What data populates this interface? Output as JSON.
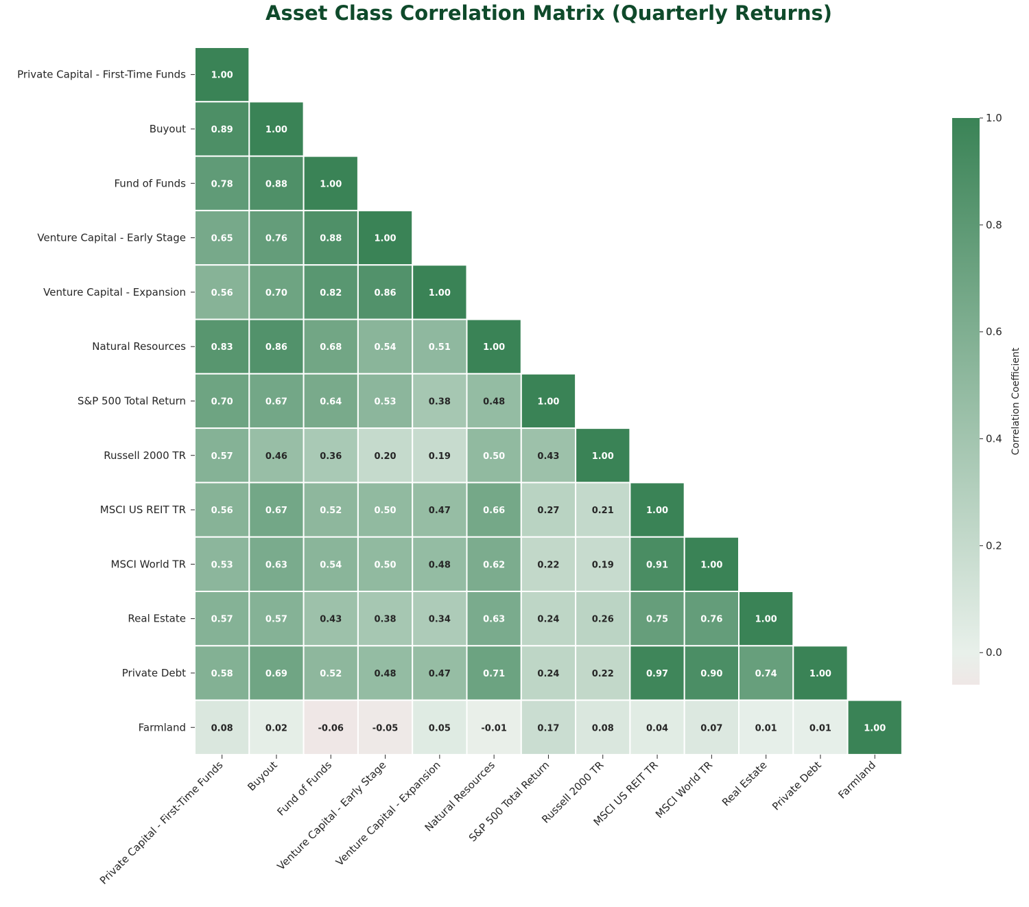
{
  "chart_data": {
    "type": "heatmap",
    "title": "Asset Class Correlation Matrix (Quarterly Returns)",
    "labels": [
      "Private Capital - First-Time Funds",
      "Buyout",
      "Fund of Funds",
      "Venture Capital - Early Stage",
      "Venture Capital - Expansion",
      "Natural Resources",
      "S&P 500 Total Return",
      "Russell 2000 TR",
      "MSCI US REIT TR",
      "MSCI World TR",
      "Real Estate",
      "Private Debt",
      "Farmland"
    ],
    "matrix_lower": [
      [
        1.0
      ],
      [
        0.89,
        1.0
      ],
      [
        0.78,
        0.88,
        1.0
      ],
      [
        0.65,
        0.76,
        0.88,
        1.0
      ],
      [
        0.56,
        0.7,
        0.82,
        0.86,
        1.0
      ],
      [
        0.83,
        0.86,
        0.68,
        0.54,
        0.51,
        1.0
      ],
      [
        0.7,
        0.67,
        0.64,
        0.53,
        0.38,
        0.48,
        1.0
      ],
      [
        0.57,
        0.46,
        0.36,
        0.2,
        0.19,
        0.5,
        0.43,
        1.0
      ],
      [
        0.56,
        0.67,
        0.52,
        0.5,
        0.47,
        0.66,
        0.27,
        0.21,
        1.0
      ],
      [
        0.53,
        0.63,
        0.54,
        0.5,
        0.48,
        0.62,
        0.22,
        0.19,
        0.91,
        1.0
      ],
      [
        0.57,
        0.57,
        0.43,
        0.38,
        0.34,
        0.63,
        0.24,
        0.26,
        0.75,
        0.76,
        1.0
      ],
      [
        0.58,
        0.69,
        0.52,
        0.48,
        0.47,
        0.71,
        0.24,
        0.22,
        0.97,
        0.9,
        0.74,
        1.0
      ],
      [
        0.08,
        0.02,
        -0.06,
        -0.05,
        0.05,
        -0.01,
        0.17,
        0.08,
        0.04,
        0.07,
        0.01,
        0.01,
        1.0
      ]
    ],
    "mask": "upper-triangle",
    "value_format": "2 decimals",
    "colorbar": {
      "label": "Correlation Coefficient",
      "range": [
        -0.06,
        1.0
      ],
      "ticks": [
        "0.0",
        "0.2",
        "0.4",
        "0.6",
        "0.8",
        "1.0"
      ],
      "tick_values": [
        0.0,
        0.2,
        0.4,
        0.6,
        0.8,
        1.0
      ]
    },
    "colors": {
      "low": "#efe7e6",
      "mid": "#e8f0ea",
      "high": "#3a8356",
      "cell_border": "#ffffff",
      "title": "#0f4a2b",
      "dark_text": "#262626",
      "light_text": "#ffffff"
    }
  }
}
